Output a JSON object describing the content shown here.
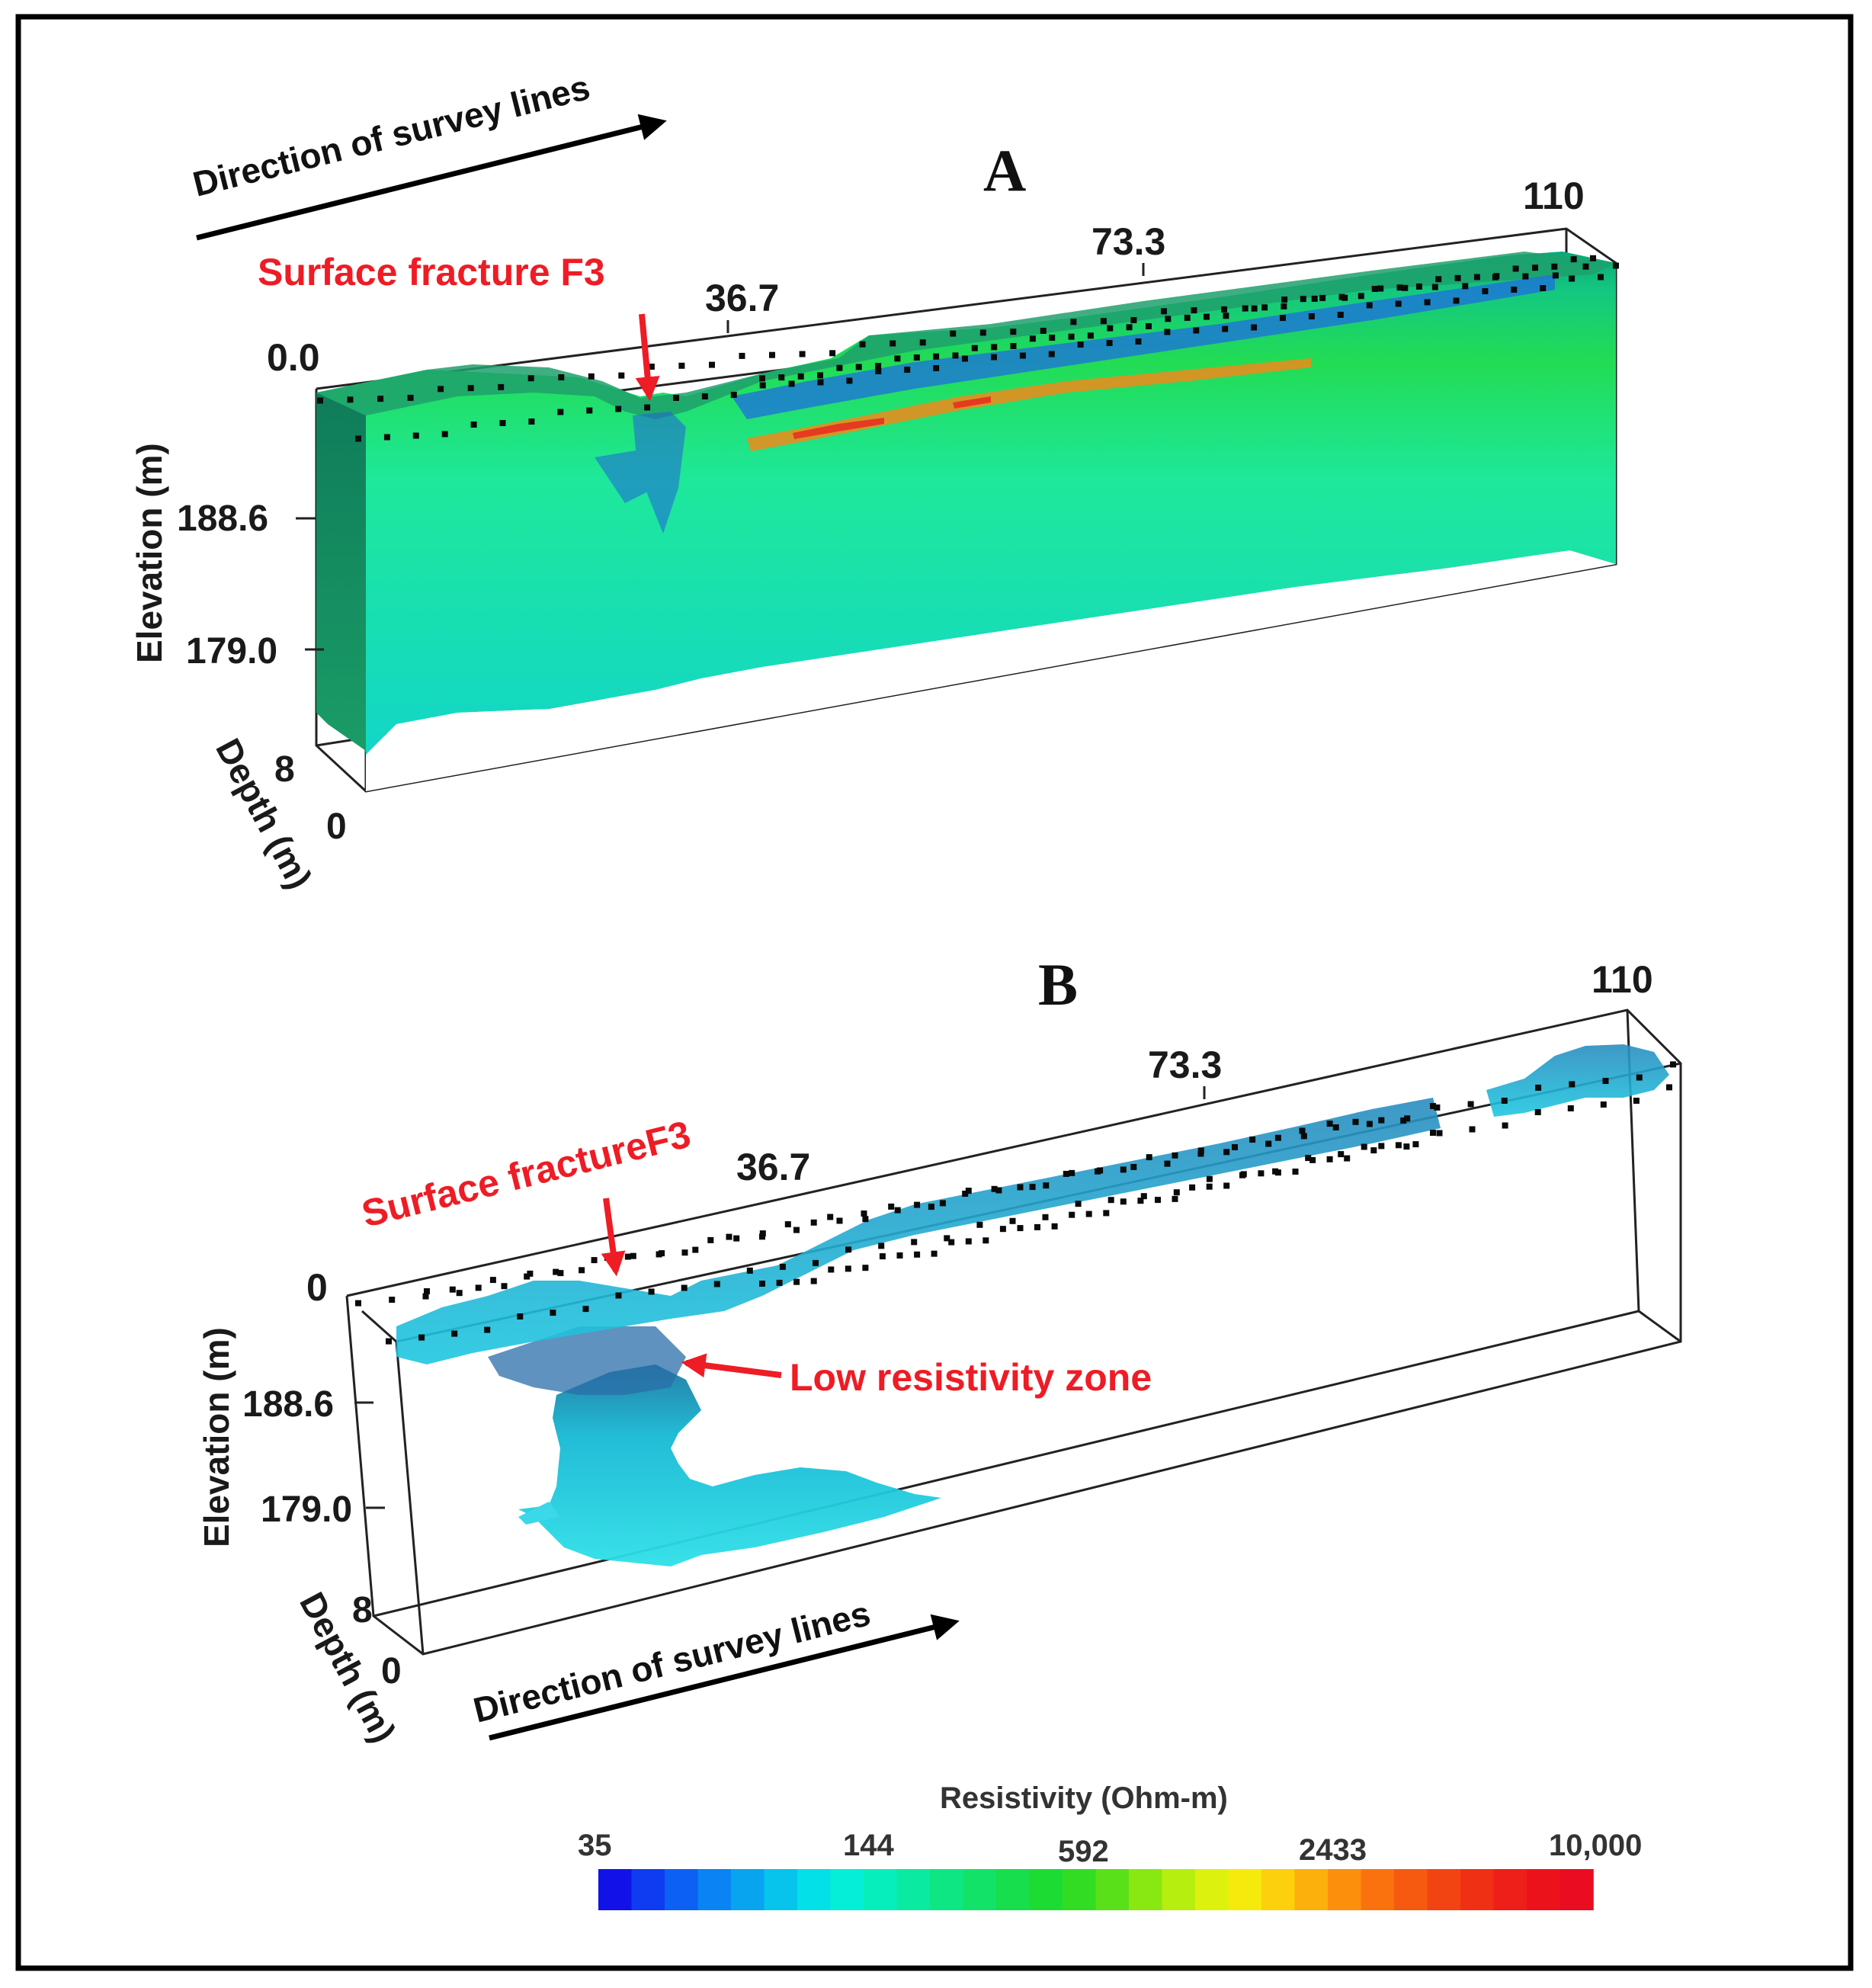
{
  "panel_a": {
    "letter": "A",
    "direction_label": "Direction  of survey lines",
    "fracture_label": "Surface fracture F3",
    "distance_ticks": [
      "0.0",
      "36.7",
      "73.3",
      "110"
    ],
    "elevation_ticks": [
      "188.6",
      "179.0"
    ],
    "elevation_axis": "Elevation (m)",
    "depth_axis": "Depth (m)",
    "depth_ticks": [
      "8",
      "0"
    ]
  },
  "panel_b": {
    "letter": "B",
    "direction_label": "Direction  of survey lines",
    "fracture_label": "Surface fractureF3",
    "zone_label": "Low resistivity zone",
    "distance_ticks": [
      "0",
      "36.7",
      "73.3",
      "110"
    ],
    "elevation_ticks": [
      "188.6",
      "179.0"
    ],
    "elevation_axis": "Elevation (m)",
    "depth_axis": "Depth (m)",
    "depth_ticks": [
      "8",
      "0"
    ]
  },
  "colorbar": {
    "title": "Resistivity (Ohm-m)",
    "ticks": [
      "35",
      "144",
      "592",
      "2433",
      "10,000"
    ],
    "colors": [
      "#1212e8",
      "#0f3cf0",
      "#0c60f4",
      "#0a84f4",
      "#08a4f0",
      "#06c4ec",
      "#04e0e8",
      "#04eed8",
      "#06eebc",
      "#0aeaa0",
      "#0ee684",
      "#12e268",
      "#16de4c",
      "#1cdc34",
      "#32dc22",
      "#5ae018",
      "#8ae812",
      "#b6ee10",
      "#dcf20e",
      "#f6ea0c",
      "#fcd00c",
      "#fcb00c",
      "#fc900c",
      "#fa720e",
      "#f65a10",
      "#f24412",
      "#f03014",
      "#ee1e18",
      "#ec121c",
      "#ea0c20"
    ]
  }
}
